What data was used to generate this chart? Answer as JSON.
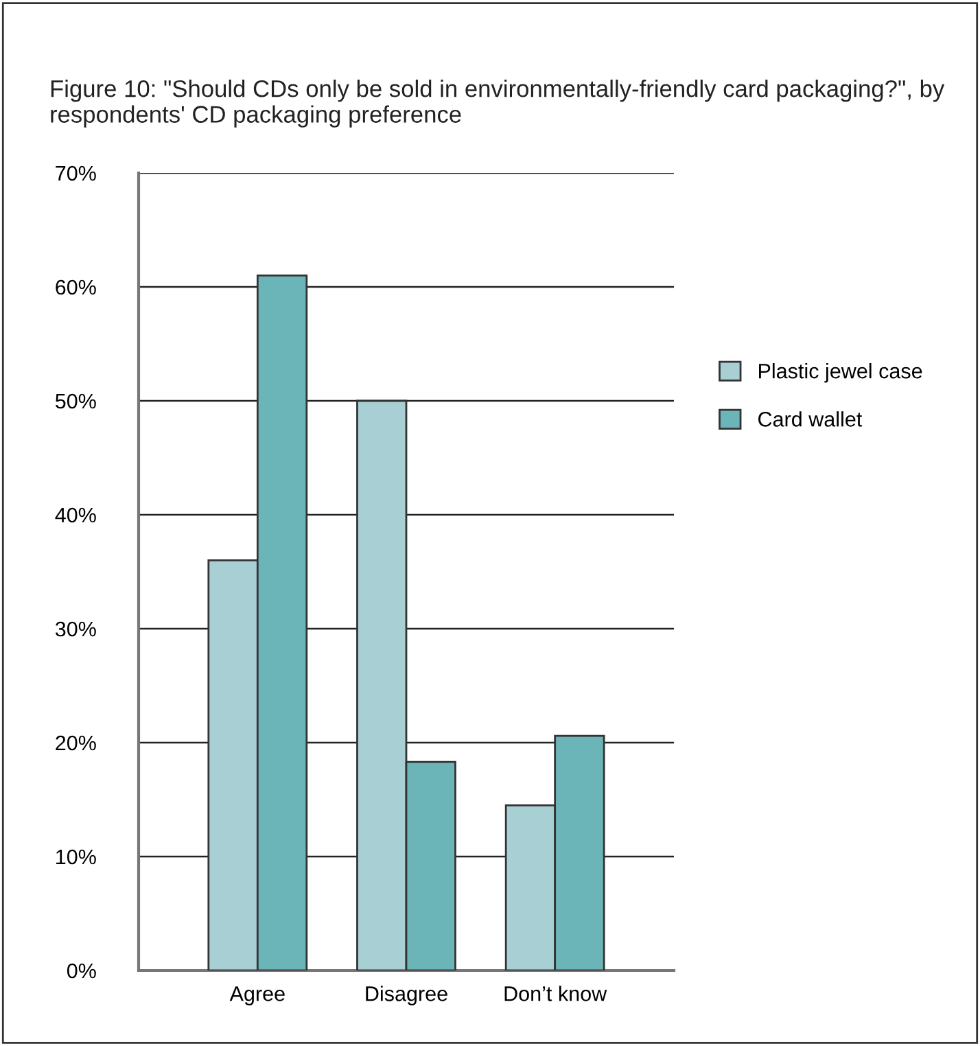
{
  "chart_data": {
    "type": "bar",
    "title": "Figure 10: \"Should CDs only be sold in environmentally-friendly card packaging?\", by respondents' CD packaging preference",
    "categories": [
      "Agree",
      "Disagree",
      "Don’t know"
    ],
    "series": [
      {
        "name": "Plastic jewel case",
        "color": "#a8cfd3",
        "values": [
          36,
          50,
          14.5
        ]
      },
      {
        "name": "Card wallet",
        "color": "#6bb5b9",
        "values": [
          61,
          18.3,
          20.6
        ]
      }
    ],
    "ylim": [
      0,
      70
    ],
    "yticks": [
      {
        "value": 0,
        "label": "0%"
      },
      {
        "value": 10,
        "label": "10%"
      },
      {
        "value": 20,
        "label": "20%"
      },
      {
        "value": 30,
        "label": "30%"
      },
      {
        "value": 40,
        "label": "40%"
      },
      {
        "value": 50,
        "label": "50%"
      },
      {
        "value": 60,
        "label": "60%"
      },
      {
        "value": 70,
        "label": "70%"
      }
    ],
    "grid": "y",
    "legend": "right"
  }
}
